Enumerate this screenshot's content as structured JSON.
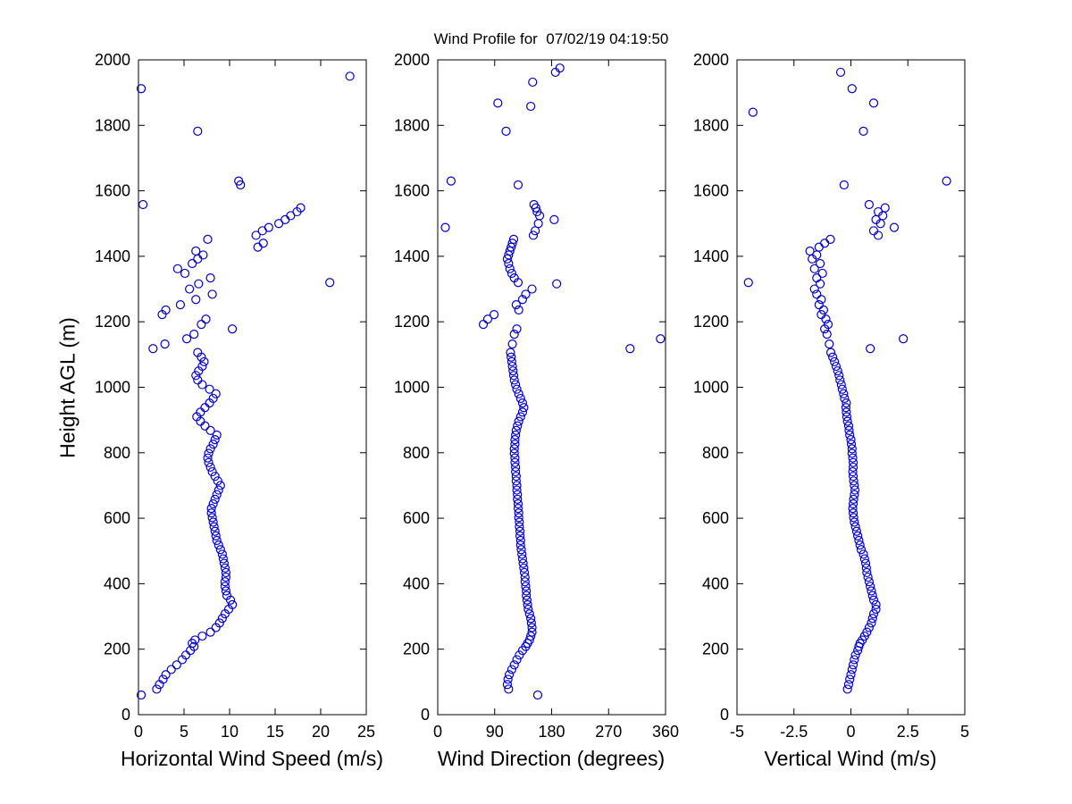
{
  "chart_data": {
    "type": "scatter",
    "title": "Wind Profile for  07/02/19 04:19:50",
    "ylabel": "Height AGL (m)",
    "ylim": [
      0,
      2000
    ],
    "yticks": [
      0,
      200,
      400,
      600,
      800,
      1000,
      1200,
      1400,
      1600,
      1800,
      2000
    ],
    "yticklabels": [
      "0",
      "200",
      "400",
      "600",
      "800",
      "1000",
      "1200",
      "1400",
      "1600",
      "1800",
      "2000"
    ],
    "axis_color": "#000000",
    "grid": false,
    "legend": null,
    "marker": {
      "shape": "circle-open",
      "color": "#0000cc",
      "radius": 4.5,
      "stroke_width": 1.2
    },
    "columns": [
      "height_m",
      "horizontal_wind_speed_ms",
      "wind_direction_deg",
      "vertical_wind_ms"
    ],
    "subplots": [
      {
        "id": "horizontal-wind-speed",
        "xlabel": "Horizontal Wind Speed (m/s)",
        "xlim": [
          0,
          25
        ],
        "xticks": [
          0,
          5,
          10,
          15,
          20,
          25
        ],
        "xticklabels": [
          "0",
          "5",
          "10",
          "15",
          "20",
          "25"
        ],
        "col": 1
      },
      {
        "id": "wind-direction",
        "xlabel": "Wind Direction (degrees)",
        "xlim": [
          0,
          360
        ],
        "xticks": [
          0,
          90,
          180,
          270,
          360
        ],
        "xticklabels": [
          "0",
          "90",
          "180",
          "270",
          "360"
        ],
        "col": 2
      },
      {
        "id": "vertical-wind",
        "xlabel": "Vertical Wind (m/s)",
        "xlim": [
          -5,
          5
        ],
        "xticks": [
          -5,
          -2.5,
          0,
          2.5,
          5
        ],
        "xticklabels": [
          "-5",
          "-2.5",
          "0",
          "2.5",
          "5"
        ],
        "col": 3
      }
    ],
    "points": [
      [
        60,
        0.3,
        158,
        null
      ],
      [
        78,
        2.0,
        112,
        -0.15
      ],
      [
        92,
        2.3,
        110,
        -0.1
      ],
      [
        108,
        2.7,
        111,
        -0.05
      ],
      [
        122,
        3.0,
        113,
        0.0
      ],
      [
        138,
        3.6,
        117,
        0.05
      ],
      [
        152,
        4.2,
        121,
        0.1
      ],
      [
        168,
        4.8,
        125,
        0.15
      ],
      [
        182,
        5.2,
        129,
        0.2
      ],
      [
        196,
        5.7,
        134,
        0.3
      ],
      [
        208,
        6.1,
        139,
        0.35
      ],
      [
        218,
        5.9,
        142,
        0.4
      ],
      [
        228,
        6.2,
        145,
        0.5
      ],
      [
        240,
        7.0,
        147,
        0.6
      ],
      [
        252,
        7.9,
        149,
        0.7
      ],
      [
        266,
        8.5,
        149,
        0.8
      ],
      [
        280,
        8.9,
        148,
        0.9
      ],
      [
        294,
        9.2,
        147,
        0.95
      ],
      [
        308,
        9.5,
        145,
        1.0
      ],
      [
        322,
        9.9,
        143,
        1.1
      ],
      [
        336,
        10.3,
        142,
        1.1
      ],
      [
        350,
        10.1,
        141,
        1.0
      ],
      [
        364,
        9.7,
        140,
        0.95
      ],
      [
        378,
        9.6,
        140,
        0.9
      ],
      [
        392,
        9.5,
        139,
        0.85
      ],
      [
        406,
        9.5,
        138,
        0.8
      ],
      [
        420,
        9.6,
        138,
        0.75
      ],
      [
        434,
        9.6,
        137,
        0.7
      ],
      [
        448,
        9.5,
        136,
        0.68
      ],
      [
        462,
        9.4,
        135,
        0.65
      ],
      [
        476,
        9.3,
        134,
        0.6
      ],
      [
        490,
        9.2,
        133,
        0.55
      ],
      [
        504,
        9.0,
        132,
        0.45
      ],
      [
        518,
        8.8,
        131,
        0.4
      ],
      [
        532,
        8.6,
        131,
        0.35
      ],
      [
        546,
        8.5,
        130,
        0.3
      ],
      [
        560,
        8.4,
        130,
        0.25
      ],
      [
        574,
        8.3,
        129,
        0.2
      ],
      [
        588,
        8.2,
        129,
        0.15
      ],
      [
        602,
        8.1,
        128,
        0.12
      ],
      [
        616,
        8.0,
        128,
        0.1
      ],
      [
        630,
        8.0,
        127,
        0.08
      ],
      [
        644,
        8.2,
        127,
        0.1
      ],
      [
        658,
        8.4,
        126,
        0.12
      ],
      [
        672,
        8.6,
        126,
        0.15
      ],
      [
        686,
        8.8,
        125,
        0.18
      ],
      [
        700,
        9.0,
        125,
        0.15
      ],
      [
        714,
        8.7,
        124,
        0.12
      ],
      [
        728,
        8.4,
        124,
        0.1
      ],
      [
        742,
        8.1,
        123,
        0.08
      ],
      [
        756,
        7.9,
        123,
        0.1
      ],
      [
        770,
        7.7,
        122,
        0.1
      ],
      [
        784,
        7.6,
        122,
        0.08
      ],
      [
        798,
        7.7,
        121,
        0.05
      ],
      [
        812,
        7.9,
        121,
        0.05
      ],
      [
        826,
        8.2,
        122,
        0.02
      ],
      [
        840,
        8.4,
        122,
        0.0
      ],
      [
        854,
        8.6,
        123,
        -0.05
      ],
      [
        868,
        7.9,
        124,
        -0.08
      ],
      [
        882,
        7.3,
        126,
        -0.1
      ],
      [
        896,
        6.8,
        128,
        -0.15
      ],
      [
        910,
        6.4,
        131,
        -0.18
      ],
      [
        924,
        6.8,
        134,
        -0.2
      ],
      [
        938,
        7.3,
        136,
        -0.22
      ],
      [
        952,
        7.8,
        134,
        -0.2
      ],
      [
        966,
        8.2,
        131,
        -0.28
      ],
      [
        980,
        8.5,
        128,
        -0.32
      ],
      [
        994,
        7.8,
        125,
        -0.38
      ],
      [
        1008,
        7.0,
        123,
        -0.42
      ],
      [
        1022,
        6.5,
        121,
        -0.48
      ],
      [
        1036,
        6.3,
        120,
        -0.52
      ],
      [
        1050,
        6.6,
        119,
        -0.58
      ],
      [
        1064,
        7.0,
        118,
        -0.65
      ],
      [
        1078,
        7.2,
        117,
        -0.72
      ],
      [
        1092,
        6.9,
        116,
        -0.8
      ],
      [
        1106,
        6.5,
        115,
        -0.88
      ],
      [
        1118,
        1.6,
        304,
        0.85
      ],
      [
        1132,
        2.9,
        118,
        -0.95
      ],
      [
        1148,
        5.3,
        352,
        2.3
      ],
      [
        1162,
        6.1,
        121,
        -1.05
      ],
      [
        1178,
        10.3,
        125,
        -1.15
      ],
      [
        1192,
        6.9,
        72,
        -1.0
      ],
      [
        1208,
        7.4,
        79,
        -1.1
      ],
      [
        1222,
        2.6,
        89,
        -1.3
      ],
      [
        1236,
        3.0,
        128,
        -1.2
      ],
      [
        1252,
        4.6,
        124,
        -1.4
      ],
      [
        1268,
        6.3,
        134,
        -1.3
      ],
      [
        1284,
        8.1,
        139,
        -1.5
      ],
      [
        1300,
        5.6,
        149,
        -1.6
      ],
      [
        1316,
        6.6,
        188,
        -1.35
      ],
      [
        1320,
        21.0,
        127,
        -4.5
      ],
      [
        1334,
        7.9,
        121,
        -1.5
      ],
      [
        1348,
        5.1,
        117,
        -1.25
      ],
      [
        1362,
        4.3,
        114,
        -1.6
      ],
      [
        1378,
        5.9,
        112,
        -1.35
      ],
      [
        1392,
        6.5,
        110,
        -1.7
      ],
      [
        1404,
        7.1,
        112,
        -1.5
      ],
      [
        1416,
        6.3,
        114,
        -1.8
      ],
      [
        1428,
        13.1,
        116,
        -1.4
      ],
      [
        1440,
        13.7,
        118,
        -1.15
      ],
      [
        1452,
        7.6,
        120,
        -0.9
      ],
      [
        1464,
        12.9,
        151,
        1.2
      ],
      [
        1478,
        13.6,
        154,
        1.0
      ],
      [
        1488,
        14.3,
        12,
        1.9
      ],
      [
        1500,
        15.4,
        159,
        1.3
      ],
      [
        1512,
        16.1,
        184,
        1.1
      ],
      [
        1524,
        16.7,
        161,
        1.4
      ],
      [
        1536,
        17.4,
        157,
        1.2
      ],
      [
        1548,
        17.8,
        155,
        1.5
      ],
      [
        1558,
        0.5,
        152,
        0.8
      ],
      [
        1618,
        11.2,
        127,
        -0.3
      ],
      [
        1630,
        11.0,
        21,
        4.2
      ],
      [
        1782,
        6.5,
        108,
        0.55
      ],
      [
        1840,
        null,
        null,
        -4.3
      ],
      [
        1858,
        null,
        147,
        null
      ],
      [
        1868,
        null,
        95,
        1.0
      ],
      [
        1912,
        0.3,
        null,
        0.05
      ],
      [
        1932,
        null,
        150,
        null
      ],
      [
        1950,
        23.2,
        null,
        null
      ],
      [
        1962,
        null,
        186,
        -0.45
      ],
      [
        1975,
        null,
        193,
        null
      ]
    ]
  }
}
